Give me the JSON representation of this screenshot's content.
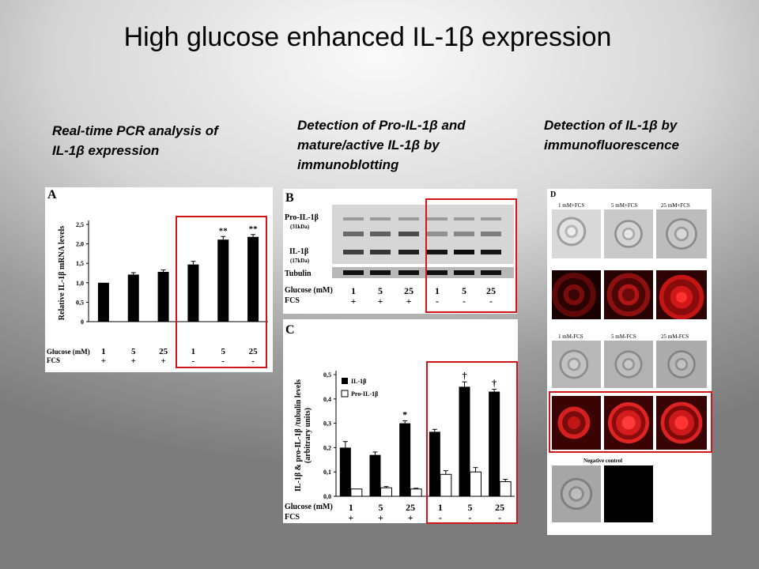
{
  "slide": {
    "title": "High glucose enhanced IL-1β expression",
    "label_pcr": "Real-time PCR analysis of\nIL-1β expression",
    "label_blot": "Detection of Pro-IL-1β and\nmature/active IL-1β by\nimmunoblotting",
    "label_if": "Detection of  IL-1β by\nimmunofluorescence"
  },
  "colors": {
    "highlight": "#d0161b",
    "bar_fill": "#000000",
    "fluor": "#d01818"
  },
  "panelA": {
    "letter": "A",
    "row_glucose_label": "Glucose (mM)",
    "row_fcs_label": "FCS",
    "glucose": [
      "1",
      "5",
      "25",
      "1",
      "5",
      "25"
    ],
    "fcs": [
      "+",
      "+",
      "+",
      "-",
      "-",
      "-"
    ]
  },
  "panelB": {
    "letter": "B",
    "pro_label": "Pro-IL-1β",
    "pro_kda": "(31kDa)",
    "il_label": "IL-1β",
    "il_kda": "(17kDa)",
    "tubulin_label": "Tubulin",
    "row_glucose_label": "Glucose (mM)",
    "row_fcs_label": "FCS",
    "glucose": [
      "1",
      "5",
      "25",
      "1",
      "5",
      "25"
    ],
    "fcs": [
      "+",
      "+",
      "+",
      "-",
      "-",
      "-"
    ]
  },
  "panelC": {
    "letter": "C",
    "row_glucose_label": "Glucose (mM)",
    "row_fcs_label": "FCS",
    "glucose": [
      "1",
      "5",
      "25",
      "1",
      "5",
      "25"
    ],
    "fcs": [
      "+",
      "+",
      "+",
      "-",
      "-",
      "-"
    ]
  },
  "panelD": {
    "letter": "D",
    "row1_labels": [
      "1 mM+FCS",
      "5 mM+FCS",
      "25 mM+FCS"
    ],
    "row3_labels": [
      "1 mM-FCS",
      "5 mM-FCS",
      "25 mM-FCS"
    ],
    "negative_label": "Negative control"
  },
  "chart_data": [
    {
      "type": "bar",
      "panel": "A",
      "ylabel": "Relative IL-1β mRNA levels",
      "ylim": [
        0,
        2.5
      ],
      "yticks": [
        "0",
        "0,5",
        "1,0",
        "1,5",
        "2,0",
        "2,5"
      ],
      "categories": [
        "1",
        "5",
        "25",
        "1",
        "5",
        "25"
      ],
      "values": [
        1.0,
        1.21,
        1.28,
        1.47,
        2.11,
        2.18
      ],
      "errors": [
        0.0,
        0.05,
        0.05,
        0.08,
        0.08,
        0.06
      ],
      "annotations": [
        "",
        "",
        "",
        "",
        "**",
        "**"
      ]
    },
    {
      "type": "bar",
      "panel": "C",
      "ylabel": "IL-1β & pro-IL-1β /tubulin levels\n(arbitrary units)",
      "ylim": [
        0,
        0.5
      ],
      "yticks": [
        "0,0",
        "0,1",
        "0,2",
        "0,3",
        "0,4",
        "0,5"
      ],
      "categories": [
        "1",
        "5",
        "25",
        "1",
        "5",
        "25"
      ],
      "series": [
        {
          "name": "IL-1β",
          "values": [
            0.2,
            0.17,
            0.3,
            0.265,
            0.45,
            0.43
          ],
          "errors": [
            0.025,
            0.012,
            0.01,
            0.01,
            0.02,
            0.01
          ]
        },
        {
          "name": "Pro-IL-1β",
          "values": [
            0.03,
            0.035,
            0.03,
            0.09,
            0.1,
            0.06
          ],
          "errors": [
            0.0,
            0.005,
            0.003,
            0.015,
            0.018,
            0.01
          ]
        }
      ],
      "annotations": [
        "",
        "",
        "*",
        "",
        "†",
        "†"
      ],
      "legend": "top-left"
    }
  ]
}
